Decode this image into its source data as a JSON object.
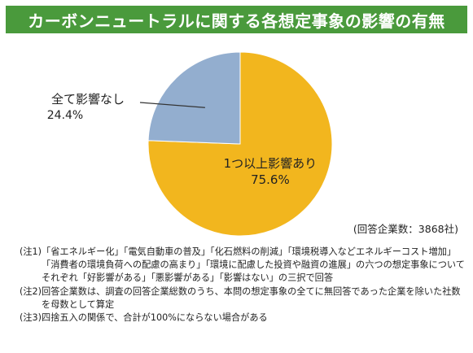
{
  "chart_data": {
    "type": "pie",
    "title": "カーボンニュートラルに関する各想定事象の影響の有無",
    "slices": [
      {
        "label": "1つ以上影響あり",
        "value": 75.6,
        "value_label": "75.6%",
        "color": "#f2b61e"
      },
      {
        "label": "全て影響なし",
        "value": 24.4,
        "value_label": "24.4%",
        "color": "#93aecf"
      }
    ],
    "start_angle": "12 o'clock",
    "direction": "clockwise",
    "respondents": "(回答企業数：3868社)"
  },
  "notes": [
    {
      "tag": "(注1)",
      "text": "「省エネルギー化」「電気自動車の普及」「化石燃料の削減」「環境税導入などエネルギーコスト増加」「消費者の環境負荷への配慮の高まり」「環境に配慮した投資や融資の進展」の六つの想定事象についてそれぞれ「好影響がある」「悪影響がある」「影響はない」の三択で回答"
    },
    {
      "tag": "(注2)",
      "text": "回答企業数は、調査の回答企業総数のうち、本問の想定事象の全てに無回答であった企業を除いた社数を母数として算定"
    },
    {
      "tag": "(注3)",
      "text": "四捨五入の関係で、合計が100%にならない場合がある"
    }
  ]
}
